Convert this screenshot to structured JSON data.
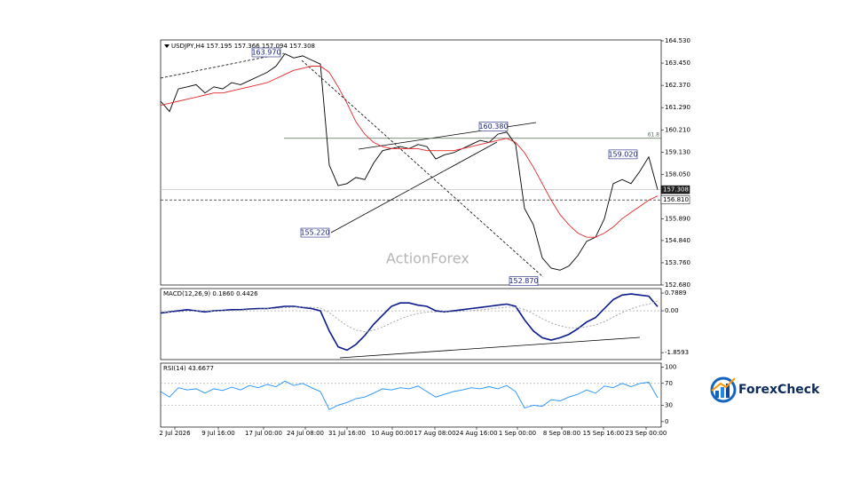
{
  "watermark": "ActionForex",
  "brand": "ForexCheck",
  "chart_data": [
    {
      "type": "line",
      "title": "USDJPY,H4 157.195 157.366 157.094 157.308",
      "ylim": [
        152.68,
        164.53
      ],
      "yticks": [
        {
          "value": 164.53,
          "label": "164.530"
        },
        {
          "value": 163.45,
          "label": "163.450"
        },
        {
          "value": 162.37,
          "label": "162.370"
        },
        {
          "value": 161.29,
          "label": "161.290"
        },
        {
          "value": 160.21,
          "label": "160.210"
        },
        {
          "value": 159.13,
          "label": "159.130"
        },
        {
          "value": 158.05,
          "label": "158.050"
        },
        {
          "value": 155.89,
          "label": "155.890"
        },
        {
          "value": 154.84,
          "label": "154.840"
        },
        {
          "value": 153.76,
          "label": "153.760"
        },
        {
          "value": 152.68,
          "label": "152.680"
        }
      ],
      "series": [
        {
          "color": "#000000",
          "values": [
            161.6,
            161.1,
            162.2,
            162.3,
            162.4,
            162.0,
            162.3,
            162.2,
            162.5,
            162.4,
            162.6,
            162.8,
            163.0,
            163.3,
            163.9,
            163.7,
            163.8,
            163.6,
            163.4,
            158.5,
            157.5,
            157.6,
            157.9,
            157.8,
            158.6,
            159.2,
            159.3,
            159.4,
            159.3,
            159.5,
            159.4,
            158.8,
            159.0,
            159.1,
            159.3,
            159.5,
            159.7,
            159.6,
            160.0,
            160.1,
            159.5,
            156.4,
            155.6,
            154.0,
            153.5,
            153.4,
            153.6,
            154.1,
            154.8,
            155.0,
            155.9,
            157.6,
            157.8,
            157.6,
            158.2,
            158.9,
            157.308
          ]
        },
        {
          "color": "#e8262a",
          "values": [
            161.4,
            161.5,
            161.6,
            161.7,
            161.8,
            161.9,
            162.0,
            162.0,
            162.1,
            162.2,
            162.3,
            162.4,
            162.5,
            162.7,
            162.9,
            163.1,
            163.2,
            163.3,
            163.3,
            163.0,
            162.3,
            161.5,
            160.6,
            160.0,
            159.6,
            159.4,
            159.3,
            159.3,
            159.3,
            159.3,
            159.2,
            159.2,
            159.2,
            159.2,
            159.3,
            159.4,
            159.5,
            159.6,
            159.7,
            159.8,
            159.6,
            159.1,
            158.4,
            157.6,
            156.8,
            156.1,
            155.6,
            155.2,
            155.0,
            155.0,
            155.2,
            155.5,
            155.9,
            156.2,
            156.5,
            156.8,
            157.0
          ]
        }
      ],
      "annotations": [
        {
          "label": "163.970",
          "value": 163.97,
          "x": 11.9
        },
        {
          "label": "155.220",
          "value": 155.22,
          "x": 17.4
        },
        {
          "label": "160.380",
          "value": 160.38,
          "x": 37.5
        },
        {
          "label": "152.870",
          "value": 152.87,
          "x": 40.9
        },
        {
          "label": "159.020",
          "value": 159.02,
          "x": 52.1
        }
      ],
      "levels": [
        {
          "value": 159.8,
          "label": "61.8"
        },
        {
          "value": 157.308,
          "label": "157.308"
        },
        {
          "value": 156.81,
          "label": "156.810"
        }
      ]
    },
    {
      "type": "line",
      "title": "MACD(12,26,9) 0.1860 0.4426",
      "ylim": [
        -2.17,
        0.99
      ],
      "yticks": [
        0.7889,
        {
          "value": 0,
          "label": "0.00"
        },
        -1.8593
      ],
      "series": [
        {
          "color": "#0a1a8c",
          "values": [
            -0.1,
            -0.05,
            0.0,
            0.05,
            0.0,
            -0.05,
            0.0,
            0.02,
            0.05,
            0.05,
            0.08,
            0.1,
            0.1,
            0.15,
            0.2,
            0.2,
            0.15,
            0.1,
            0.0,
            -0.9,
            -1.6,
            -1.75,
            -1.5,
            -1.1,
            -0.6,
            -0.2,
            0.2,
            0.35,
            0.35,
            0.25,
            0.2,
            0.0,
            -0.05,
            0.0,
            0.05,
            0.1,
            0.15,
            0.2,
            0.25,
            0.3,
            0.2,
            -0.4,
            -0.9,
            -1.2,
            -1.3,
            -1.2,
            -1.05,
            -0.8,
            -0.5,
            -0.3,
            0.1,
            0.5,
            0.7,
            0.75,
            0.7,
            0.65,
            0.186
          ]
        },
        {
          "color": "#a0a0a0",
          "dashed": true,
          "values": [
            -0.05,
            -0.06,
            -0.04,
            -0.02,
            0.0,
            0.0,
            -0.01,
            0.0,
            0.01,
            0.03,
            0.05,
            0.07,
            0.09,
            0.11,
            0.14,
            0.16,
            0.17,
            0.16,
            0.13,
            -0.08,
            -0.38,
            -0.66,
            -0.86,
            -0.93,
            -0.86,
            -0.73,
            -0.54,
            -0.36,
            -0.22,
            -0.12,
            -0.06,
            -0.05,
            -0.05,
            -0.04,
            -0.02,
            0.01,
            0.04,
            0.08,
            0.12,
            0.16,
            0.17,
            0.06,
            -0.13,
            -0.35,
            -0.54,
            -0.67,
            -0.75,
            -0.76,
            -0.71,
            -0.63,
            -0.48,
            -0.28,
            -0.08,
            0.09,
            0.21,
            0.3,
            0.4426
          ]
        }
      ]
    },
    {
      "type": "line",
      "title": "RSI(14) 43.6677",
      "ylim": [
        -10,
        107
      ],
      "yticks": [
        100,
        70,
        30,
        0
      ],
      "xlim": [
        0,
        56.4
      ],
      "xticks": [
        {
          "value": 1.6,
          "label": "2 Jul 2026"
        },
        {
          "value": 6.5,
          "label": "9 Jul 16:00"
        },
        {
          "value": 11.6,
          "label": "17 Jul 00:00"
        },
        {
          "value": 16.3,
          "label": "24 Jul 08:00"
        },
        {
          "value": 21.0,
          "label": "31 Jul 16:00"
        },
        {
          "value": 26.1,
          "label": "10 Aug 00:00"
        },
        {
          "value": 30.9,
          "label": "17 Aug 08:00"
        },
        {
          "value": 35.6,
          "label": "24 Aug 16:00"
        },
        {
          "value": 40.2,
          "label": "1 Sep 00:00"
        },
        {
          "value": 45.2,
          "label": "8 Sep 08:00"
        },
        {
          "value": 49.9,
          "label": "15 Sep 16:00"
        },
        {
          "value": 54.7,
          "label": "23 Sep 00:00"
        }
      ],
      "series": [
        {
          "color": "#1e90ff",
          "values": [
            55,
            45,
            62,
            58,
            60,
            52,
            60,
            57,
            63,
            58,
            66,
            62,
            68,
            64,
            74,
            66,
            70,
            62,
            55,
            22,
            30,
            35,
            42,
            45,
            52,
            60,
            58,
            62,
            60,
            65,
            55,
            45,
            50,
            55,
            58,
            62,
            60,
            64,
            60,
            66,
            55,
            25,
            30,
            28,
            40,
            38,
            45,
            50,
            58,
            52,
            65,
            62,
            70,
            64,
            70,
            72,
            43.6677
          ]
        }
      ]
    }
  ]
}
